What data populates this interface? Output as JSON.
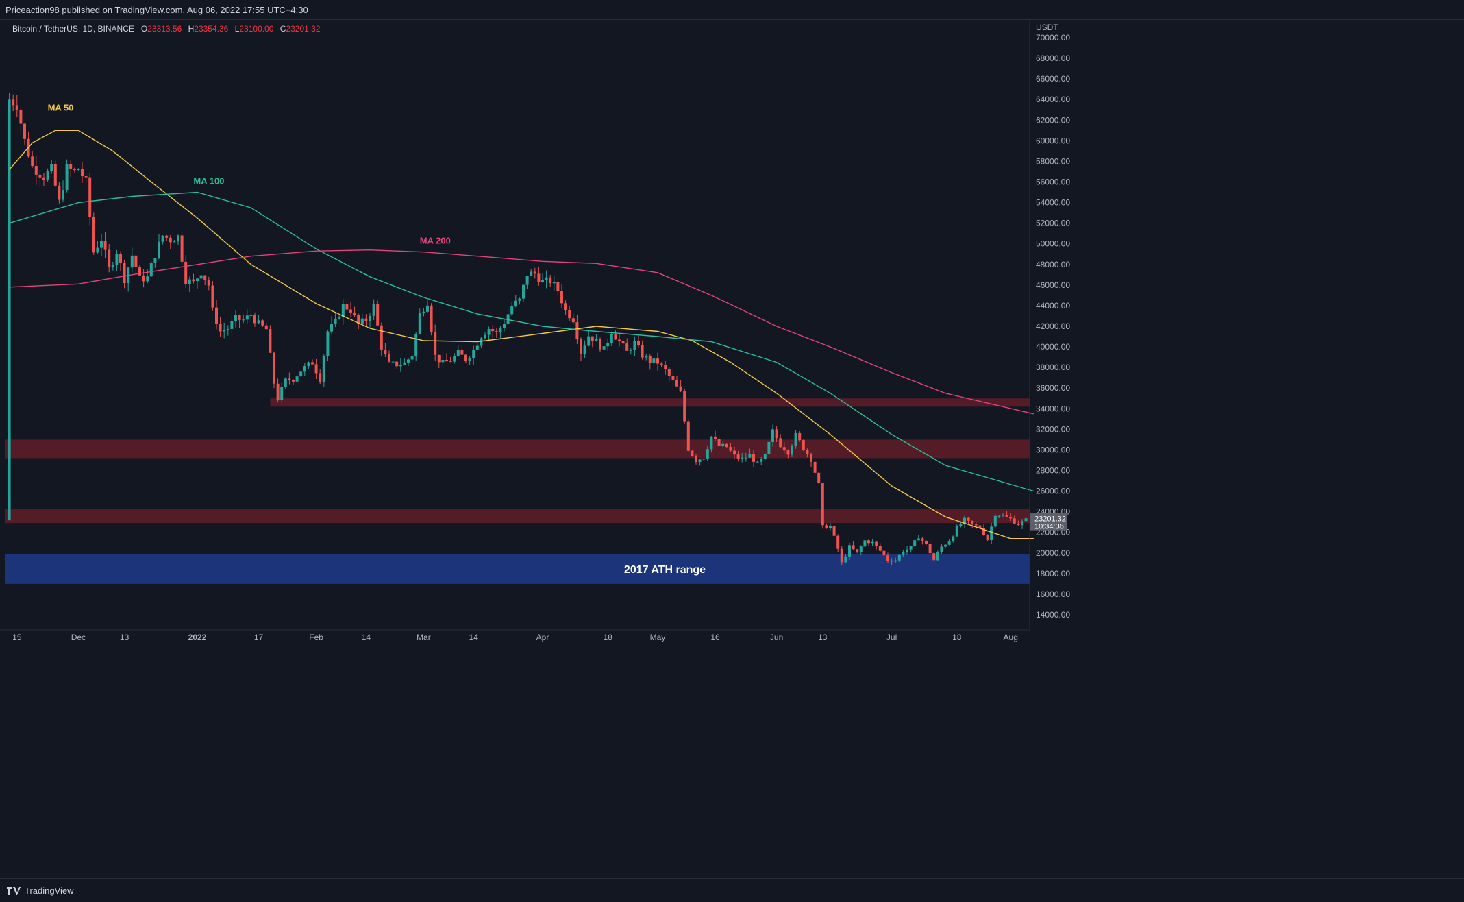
{
  "header": {
    "published": "Priceaction98 published on TradingView.com, Aug 06, 2022 17:55 UTC+4:30"
  },
  "legend": {
    "symbol": "Bitcoin / TetherUS, 1D, BINANCE",
    "o_label": "O",
    "o_value": "23313.56",
    "h_label": "H",
    "h_value": "23354.36",
    "l_label": "L",
    "l_value": "23100.00",
    "c_label": "C",
    "c_value": "23201.32"
  },
  "footer": {
    "brand": "TradingView"
  },
  "colors": {
    "background": "#131722",
    "up": "#26a69a",
    "down": "#ef5350",
    "ma50": "#f2c94c",
    "ma100": "#2bbf9b",
    "ma200": "#e0457b",
    "resistance_zone": "#6b1f2a",
    "ath_zone": "#1e3a8a"
  },
  "chart_data": {
    "type": "candlestick",
    "title": "Bitcoin / TetherUS, 1D, BINANCE",
    "y_unit": "USDT",
    "ylim": [
      12600,
      72000
    ],
    "yticks": [
      14000,
      16000,
      18000,
      20000,
      22000,
      24000,
      26000,
      28000,
      30000,
      32000,
      34000,
      36000,
      38000,
      40000,
      42000,
      44000,
      46000,
      48000,
      50000,
      52000,
      54000,
      56000,
      58000,
      60000,
      62000,
      64000,
      66000,
      68000,
      70000
    ],
    "ytick_labels": [
      "14000.00",
      "16000.00",
      "18000.00",
      "20000.00",
      "22000.00",
      "24000.00",
      "26000.00",
      "28000.00",
      "30000.00",
      "32000.00",
      "34000.00",
      "36000.00",
      "38000.00",
      "40000.00",
      "42000.00",
      "44000.00",
      "46000.00",
      "48000.00",
      "50000.00",
      "52000.00",
      "54000.00",
      "56000.00",
      "58000.00",
      "60000.00",
      "62000.00",
      "64000.00",
      "66000.00",
      "68000.00",
      "70000.00"
    ],
    "x_range": [
      "2021-11-15",
      "2022-08-17"
    ],
    "xticks": [
      {
        "date": "2021-11-15",
        "label": "15"
      },
      {
        "date": "2021-12-01",
        "label": "Dec"
      },
      {
        "date": "2021-12-13",
        "label": "13"
      },
      {
        "date": "2022-01-01",
        "label": "2022"
      },
      {
        "date": "2022-01-17",
        "label": "17"
      },
      {
        "date": "2022-02-01",
        "label": "Feb"
      },
      {
        "date": "2022-02-14",
        "label": "14"
      },
      {
        "date": "2022-03-01",
        "label": "Mar"
      },
      {
        "date": "2022-03-14",
        "label": "14"
      },
      {
        "date": "2022-04-01",
        "label": "Apr"
      },
      {
        "date": "2022-04-18",
        "label": "18"
      },
      {
        "date": "2022-05-01",
        "label": "May"
      },
      {
        "date": "2022-05-16",
        "label": "16"
      },
      {
        "date": "2022-06-01",
        "label": "Jun"
      },
      {
        "date": "2022-06-13",
        "label": "13"
      },
      {
        "date": "2022-07-01",
        "label": "Jul"
      },
      {
        "date": "2022-07-18",
        "label": "18"
      },
      {
        "date": "2022-08-01",
        "label": "Aug"
      }
    ],
    "current_price": {
      "value": 23201.32,
      "label": "23201.32",
      "countdown": "10:34:36"
    },
    "close_path": [
      [
        "2021-11-13",
        64000
      ],
      [
        "2021-11-15",
        63500
      ],
      [
        "2021-11-17",
        60000
      ],
      [
        "2021-11-19",
        57500
      ],
      [
        "2021-11-22",
        56500
      ],
      [
        "2021-11-24",
        57200
      ],
      [
        "2021-11-26",
        54000
      ],
      [
        "2021-11-28",
        57300
      ],
      [
        "2021-11-30",
        57000
      ],
      [
        "2021-12-01",
        57300
      ],
      [
        "2021-12-03",
        56000
      ],
      [
        "2021-12-05",
        49200
      ],
      [
        "2021-12-07",
        50500
      ],
      [
        "2021-12-09",
        47500
      ],
      [
        "2021-12-11",
        49300
      ],
      [
        "2021-12-13",
        46600
      ],
      [
        "2021-12-15",
        48900
      ],
      [
        "2021-12-17",
        46600
      ],
      [
        "2021-12-19",
        46700
      ],
      [
        "2021-12-21",
        49000
      ],
      [
        "2021-12-23",
        50800
      ],
      [
        "2021-12-25",
        50400
      ],
      [
        "2021-12-27",
        50700
      ],
      [
        "2021-12-29",
        46500
      ],
      [
        "2021-12-31",
        46200
      ],
      [
        "2022-01-02",
        47300
      ],
      [
        "2022-01-04",
        46000
      ],
      [
        "2022-01-05",
        43500
      ],
      [
        "2022-01-07",
        41500
      ],
      [
        "2022-01-09",
        41800
      ],
      [
        "2022-01-11",
        42700
      ],
      [
        "2022-01-13",
        42600
      ],
      [
        "2022-01-15",
        43100
      ],
      [
        "2022-01-17",
        42200
      ],
      [
        "2022-01-19",
        41700
      ],
      [
        "2022-01-21",
        36500
      ],
      [
        "2022-01-22",
        35000
      ],
      [
        "2022-01-24",
        36700
      ],
      [
        "2022-01-26",
        36900
      ],
      [
        "2022-01-28",
        37700
      ],
      [
        "2022-01-31",
        38500
      ],
      [
        "2022-02-02",
        36900
      ],
      [
        "2022-02-04",
        41500
      ],
      [
        "2022-02-06",
        42400
      ],
      [
        "2022-02-08",
        44000
      ],
      [
        "2022-02-10",
        43600
      ],
      [
        "2022-02-12",
        42200
      ],
      [
        "2022-02-14",
        42600
      ],
      [
        "2022-02-16",
        44000
      ],
      [
        "2022-02-18",
        40000
      ],
      [
        "2022-02-20",
        38300
      ],
      [
        "2022-02-22",
        38300
      ],
      [
        "2022-02-24",
        38400
      ],
      [
        "2022-02-26",
        39200
      ],
      [
        "2022-02-28",
        43200
      ],
      [
        "2022-03-02",
        44400
      ],
      [
        "2022-03-04",
        39100
      ],
      [
        "2022-03-06",
        38400
      ],
      [
        "2022-03-08",
        38700
      ],
      [
        "2022-03-10",
        39400
      ],
      [
        "2022-03-12",
        38800
      ],
      [
        "2022-03-14",
        39700
      ],
      [
        "2022-03-16",
        41100
      ],
      [
        "2022-03-18",
        41800
      ],
      [
        "2022-03-20",
        41300
      ],
      [
        "2022-03-22",
        42400
      ],
      [
        "2022-03-24",
        44000
      ],
      [
        "2022-03-26",
        44500
      ],
      [
        "2022-03-28",
        47100
      ],
      [
        "2022-03-30",
        47100
      ],
      [
        "2022-04-01",
        46300
      ],
      [
        "2022-04-03",
        46400
      ],
      [
        "2022-04-05",
        45500
      ],
      [
        "2022-04-07",
        43500
      ],
      [
        "2022-04-09",
        42700
      ],
      [
        "2022-04-11",
        39500
      ],
      [
        "2022-04-13",
        41100
      ],
      [
        "2022-04-15",
        40500
      ],
      [
        "2022-04-17",
        39700
      ],
      [
        "2022-04-19",
        41500
      ],
      [
        "2022-04-21",
        40500
      ],
      [
        "2022-04-23",
        39500
      ],
      [
        "2022-04-25",
        40400
      ],
      [
        "2022-04-27",
        39200
      ],
      [
        "2022-04-29",
        38600
      ],
      [
        "2022-05-01",
        38500
      ],
      [
        "2022-05-03",
        37700
      ],
      [
        "2022-05-05",
        36600
      ],
      [
        "2022-05-07",
        35500
      ],
      [
        "2022-05-09",
        30100
      ],
      [
        "2022-05-11",
        29000
      ],
      [
        "2022-05-13",
        29300
      ],
      [
        "2022-05-15",
        31300
      ],
      [
        "2022-05-17",
        30400
      ],
      [
        "2022-05-19",
        30300
      ],
      [
        "2022-05-21",
        29400
      ],
      [
        "2022-05-23",
        29100
      ],
      [
        "2022-05-25",
        29500
      ],
      [
        "2022-05-27",
        28600
      ],
      [
        "2022-05-29",
        29400
      ],
      [
        "2022-05-31",
        31800
      ],
      [
        "2022-06-02",
        30500
      ],
      [
        "2022-06-04",
        29800
      ],
      [
        "2022-06-06",
        31400
      ],
      [
        "2022-06-08",
        30200
      ],
      [
        "2022-06-10",
        29100
      ],
      [
        "2022-06-12",
        26600
      ],
      [
        "2022-06-13",
        22500
      ],
      [
        "2022-06-15",
        22600
      ],
      [
        "2022-06-17",
        20400
      ],
      [
        "2022-06-18",
        19000
      ],
      [
        "2022-06-20",
        20600
      ],
      [
        "2022-06-22",
        20000
      ],
      [
        "2022-06-24",
        21200
      ],
      [
        "2022-06-26",
        21000
      ],
      [
        "2022-06-28",
        20200
      ],
      [
        "2022-06-30",
        19300
      ],
      [
        "2022-07-02",
        19300
      ],
      [
        "2022-07-04",
        20200
      ],
      [
        "2022-07-06",
        20500
      ],
      [
        "2022-07-08",
        21600
      ],
      [
        "2022-07-10",
        20800
      ],
      [
        "2022-07-12",
        19300
      ],
      [
        "2022-07-14",
        20600
      ],
      [
        "2022-07-16",
        21200
      ],
      [
        "2022-07-18",
        22400
      ],
      [
        "2022-07-20",
        23200
      ],
      [
        "2022-07-22",
        22700
      ],
      [
        "2022-07-24",
        22500
      ],
      [
        "2022-07-26",
        21300
      ],
      [
        "2022-07-28",
        23800
      ],
      [
        "2022-07-30",
        23600
      ],
      [
        "2022-08-01",
        23300
      ],
      [
        "2022-08-03",
        22800
      ],
      [
        "2022-08-05",
        23200
      ]
    ],
    "moving_averages": [
      {
        "name": "MA 50",
        "points": [
          [
            "2021-11-13",
            57200
          ],
          [
            "2021-11-19",
            59800
          ],
          [
            "2021-11-25",
            61000
          ],
          [
            "2021-12-01",
            61000
          ],
          [
            "2021-12-10",
            59000
          ],
          [
            "2021-12-20",
            56000
          ],
          [
            "2022-01-01",
            52500
          ],
          [
            "2022-01-15",
            48000
          ],
          [
            "2022-02-01",
            44200
          ],
          [
            "2022-02-15",
            41800
          ],
          [
            "2022-03-01",
            40600
          ],
          [
            "2022-03-15",
            40500
          ],
          [
            "2022-04-01",
            41300
          ],
          [
            "2022-04-15",
            42000
          ],
          [
            "2022-05-01",
            41500
          ],
          [
            "2022-05-10",
            40600
          ],
          [
            "2022-05-20",
            38500
          ],
          [
            "2022-06-01",
            35500
          ],
          [
            "2022-06-15",
            31500
          ],
          [
            "2022-07-01",
            26500
          ],
          [
            "2022-07-15",
            23500
          ],
          [
            "2022-08-01",
            21400
          ],
          [
            "2022-08-07",
            21400
          ]
        ]
      },
      {
        "name": "MA 100",
        "points": [
          [
            "2021-11-13",
            52000
          ],
          [
            "2021-12-01",
            54000
          ],
          [
            "2021-12-15",
            54600
          ],
          [
            "2022-01-01",
            55000
          ],
          [
            "2022-01-15",
            53500
          ],
          [
            "2022-02-01",
            49500
          ],
          [
            "2022-02-15",
            46800
          ],
          [
            "2022-03-01",
            44800
          ],
          [
            "2022-03-15",
            43200
          ],
          [
            "2022-04-01",
            42000
          ],
          [
            "2022-04-15",
            41500
          ],
          [
            "2022-05-01",
            41000
          ],
          [
            "2022-05-15",
            40500
          ],
          [
            "2022-06-01",
            38500
          ],
          [
            "2022-06-15",
            35500
          ],
          [
            "2022-07-01",
            31500
          ],
          [
            "2022-07-15",
            28500
          ],
          [
            "2022-08-07",
            26000
          ]
        ]
      },
      {
        "name": "MA 200",
        "points": [
          [
            "2021-11-13",
            45800
          ],
          [
            "2021-12-01",
            46100
          ],
          [
            "2021-12-15",
            47000
          ],
          [
            "2022-01-01",
            48000
          ],
          [
            "2022-01-15",
            48800
          ],
          [
            "2022-02-01",
            49300
          ],
          [
            "2022-02-15",
            49400
          ],
          [
            "2022-03-01",
            49200
          ],
          [
            "2022-03-15",
            48800
          ],
          [
            "2022-04-01",
            48300
          ],
          [
            "2022-04-15",
            48100
          ],
          [
            "2022-05-01",
            47200
          ],
          [
            "2022-05-15",
            45000
          ],
          [
            "2022-06-01",
            42000
          ],
          [
            "2022-06-15",
            40000
          ],
          [
            "2022-07-01",
            37500
          ],
          [
            "2022-07-15",
            35500
          ],
          [
            "2022-08-07",
            33500
          ]
        ]
      }
    ],
    "ma_labels": [
      {
        "name": "MA 50",
        "text": "MA 50",
        "date": "2021-11-23",
        "price": 62900
      },
      {
        "name": "MA 100",
        "text": "MA 100",
        "date": "2021-12-31",
        "price": 55800
      },
      {
        "name": "MA 200",
        "text": "MA 200",
        "date": "2022-02-28",
        "price": 50000
      }
    ],
    "zones": [
      {
        "name": "resistance-34k",
        "from": 34200,
        "to": 35000,
        "start": "2022-01-20",
        "label": ""
      },
      {
        "name": "resistance-30k",
        "from": 29200,
        "to": 31000,
        "start": "2021-11-13",
        "label": ""
      },
      {
        "name": "resistance-23k",
        "from": 22900,
        "to": 24300,
        "start": "2021-11-13",
        "label": ""
      },
      {
        "name": "ath-range",
        "from": 17000,
        "to": 19900,
        "start": "2021-11-13",
        "label": "2017 ATH range"
      }
    ]
  }
}
